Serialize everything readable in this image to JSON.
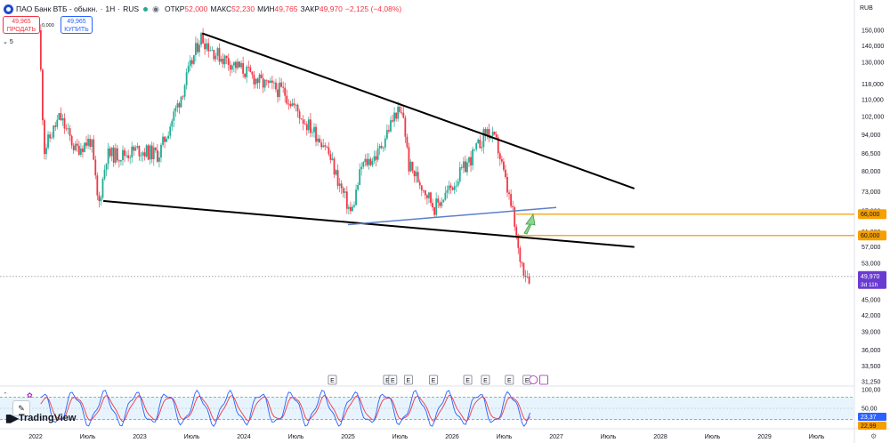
{
  "header": {
    "name": "ПАО Банк ВТБ - обыкн.",
    "interval": "1Н",
    "exchange": "RUS",
    "open_label": "ОТКР",
    "open_value": "52,000",
    "high_label": "МАКС",
    "high_value": "52,230",
    "low_label": "МИН",
    "low_value": "49,765",
    "close_label": "ЗАКР",
    "close_value": "49,970",
    "change": "−2,125 (−4,08%)"
  },
  "trade": {
    "sell_price": "49,965",
    "sell_label": "ПРОДАТЬ",
    "buy_price": "49,965",
    "buy_label": "КУПИТЬ",
    "spread": "0,000"
  },
  "indicator_toggle": "5",
  "currency": "RUB",
  "watermark": "TradingView",
  "colors": {
    "up": "#22ab94",
    "down": "#f23645",
    "level": "#f59f00",
    "stoch_k": "#2962ff",
    "stoch_d": "#f23645",
    "badge": "#6a3bd1"
  },
  "chart_data": {
    "type": "candlestick",
    "price_axis": {
      "scale": "log",
      "ticks": [
        "150,000",
        "140,000",
        "130,000",
        "118,000",
        "110,000",
        "102,000",
        "94,000",
        "86,500",
        "80,000",
        "73,000",
        "67,000",
        "61,000",
        "57,000",
        "53,000",
        "49,000",
        "45,000",
        "42,000",
        "39,000",
        "36,000",
        "33,500",
        "31,250"
      ]
    },
    "time_axis": {
      "ticks": [
        "2022",
        "Июль",
        "2023",
        "Июль",
        "2024",
        "Июль",
        "2025",
        "Июль",
        "2026",
        "Июль",
        "2027",
        "Июль",
        "2028",
        "Июль",
        "2029",
        "Июль"
      ]
    },
    "price_path": [
      [
        2022.05,
        150000
      ],
      [
        2022.1,
        88000
      ],
      [
        2022.25,
        102000
      ],
      [
        2022.4,
        88000
      ],
      [
        2022.55,
        92000
      ],
      [
        2022.62,
        68000
      ],
      [
        2022.7,
        86000
      ],
      [
        2022.85,
        86000
      ],
      [
        2023.0,
        88000
      ],
      [
        2023.2,
        86000
      ],
      [
        2023.4,
        110000
      ],
      [
        2023.6,
        146000
      ],
      [
        2023.75,
        135000
      ],
      [
        2024.0,
        126000
      ],
      [
        2024.2,
        118000
      ],
      [
        2024.4,
        114000
      ],
      [
        2024.6,
        100000
      ],
      [
        2024.8,
        90000
      ],
      [
        2024.95,
        74000
      ],
      [
        2025.05,
        66000
      ],
      [
        2025.15,
        82000
      ],
      [
        2025.3,
        86000
      ],
      [
        2025.4,
        96000
      ],
      [
        2025.48,
        104000
      ],
      [
        2025.55,
        102000
      ],
      [
        2025.6,
        82000
      ],
      [
        2025.75,
        74000
      ],
      [
        2025.85,
        68000
      ],
      [
        2026.0,
        74000
      ],
      [
        2026.15,
        82000
      ],
      [
        2026.25,
        88000
      ],
      [
        2026.35,
        96000
      ],
      [
        2026.45,
        90000
      ],
      [
        2026.55,
        73000
      ],
      [
        2026.6,
        66000
      ],
      [
        2026.65,
        56000
      ],
      [
        2026.7,
        52000
      ],
      [
        2026.75,
        49970
      ]
    ],
    "current_price": {
      "value": "49,970",
      "countdown": "3d 11h"
    },
    "horizontal_levels": [
      {
        "value": 66000,
        "label": "66,000"
      },
      {
        "value": 60000,
        "label": "60,000"
      }
    ],
    "trendlines": [
      {
        "name": "upper",
        "from": [
          2023.6,
          148000
        ],
        "to": [
          2027.75,
          74000
        ]
      },
      {
        "name": "lower",
        "from": [
          2022.65,
          70000
        ],
        "to": [
          2027.75,
          57000
        ]
      },
      {
        "name": "blue",
        "from": [
          2025.0,
          63000
        ],
        "to": [
          2027.0,
          68000
        ]
      }
    ],
    "events": [
      {
        "label": "E",
        "t": 2024.85
      },
      {
        "label": "E",
        "t": 2025.38
      },
      {
        "label": "E",
        "t": 2025.43
      },
      {
        "label": "E",
        "t": 2025.58
      },
      {
        "label": "E",
        "t": 2025.82
      },
      {
        "label": "E",
        "t": 2026.15
      },
      {
        "label": "E",
        "t": 2026.32
      },
      {
        "label": "E",
        "t": 2026.55
      },
      {
        "label": "E",
        "t": 2026.72
      }
    ],
    "oscillator": {
      "ticks": [
        "100,00",
        "50,00",
        "0,00"
      ],
      "bounds": [
        80,
        20
      ],
      "k_value": "23,37",
      "d_value": "22,99",
      "k_color": "#2962ff",
      "d_color": "#f23645"
    }
  }
}
